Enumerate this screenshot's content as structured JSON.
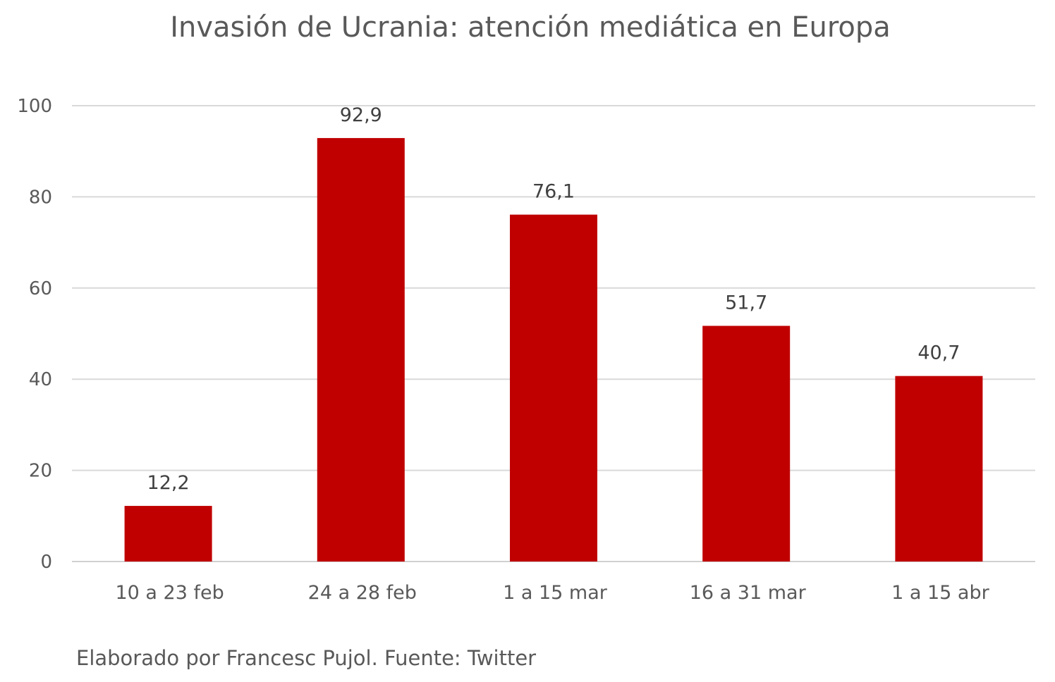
{
  "chart_data": {
    "type": "bar",
    "title": "Invasión de Ucrania: atención mediática en Europa",
    "xlabel": "",
    "ylabel": "",
    "categories": [
      "10 a 23 feb",
      "24 a 28 feb",
      "1 a 15 mar",
      "16 a 31 mar",
      "1 a 15 abr"
    ],
    "values": [
      12.2,
      92.9,
      76.1,
      51.7,
      40.7
    ],
    "value_labels": [
      "12,2",
      "92,9",
      "76,1",
      "51,7",
      "40,7"
    ],
    "ylim": [
      0,
      100
    ],
    "yticks": [
      0,
      20,
      40,
      60,
      80,
      100
    ],
    "ytick_labels": [
      "0",
      "20",
      "40",
      "60",
      "80",
      "100"
    ],
    "grid": true,
    "legend": "none",
    "bar_color": "#c00000"
  },
  "source_note": "Elaborado por Francesc Pujol. Fuente: Twitter"
}
